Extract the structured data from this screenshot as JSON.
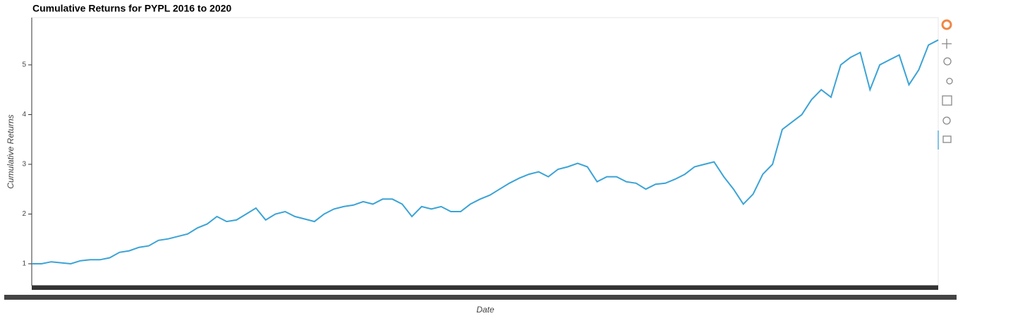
{
  "chart_data": {
    "type": "line",
    "title": "Cumulative Returns for PYPL 2016 to 2020",
    "x_label": "Date",
    "y_label": "Cumulative Returns",
    "series": [
      {
        "name": "PYPL",
        "color": "#3ba3d6",
        "values": [
          1.0,
          1.0,
          1.04,
          1.02,
          1.0,
          1.06,
          1.08,
          1.08,
          1.12,
          1.23,
          1.26,
          1.33,
          1.36,
          1.47,
          1.5,
          1.55,
          1.6,
          1.72,
          1.8,
          1.95,
          1.85,
          1.88,
          2.0,
          2.12,
          1.88,
          2.0,
          2.05,
          1.95,
          1.9,
          1.85,
          2.0,
          2.1,
          2.15,
          2.18,
          2.25,
          2.2,
          2.3,
          2.3,
          2.2,
          1.95,
          2.15,
          2.1,
          2.15,
          2.05,
          2.05,
          2.2,
          2.3,
          2.38,
          2.5,
          2.62,
          2.72,
          2.8,
          2.85,
          2.75,
          2.9,
          2.95,
          3.02,
          2.95,
          2.65,
          2.75,
          2.75,
          2.65,
          2.62,
          2.5,
          2.6,
          2.62,
          2.7,
          2.8,
          2.95,
          3.0,
          3.05,
          2.75,
          2.5,
          2.2,
          2.4,
          2.8,
          3.0,
          3.7,
          3.85,
          4.0,
          4.3,
          4.5,
          4.35,
          5.0,
          5.15,
          5.25,
          4.5,
          5.0,
          5.1,
          5.2,
          4.6,
          4.9,
          5.4,
          5.5
        ]
      }
    ],
    "ylim": [
      0.56,
      5.95
    ],
    "yticks": [
      1,
      2,
      3,
      4,
      5
    ],
    "grid": false
  }
}
